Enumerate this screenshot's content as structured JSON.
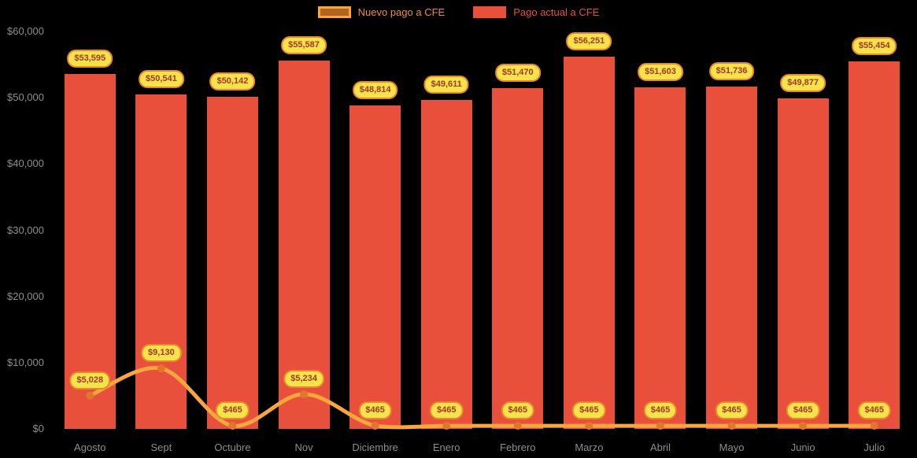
{
  "colors": {
    "background": "#000000",
    "axis_text": "#8e8e8e",
    "pill_bg": "#f7e24b",
    "pill_border": "#e8872c",
    "pill_text": "#9e3a1e",
    "legend_line_fill": "#b3641c",
    "legend_line_border": "#f9a63c",
    "legend_line_text": "#ee8f2f",
    "legend_bar_text": "#e8503b"
  },
  "chart_data": {
    "type": "bar",
    "categories": [
      "Agosto",
      "Sept",
      "Octubre",
      "Nov",
      "Diciembre",
      "Enero",
      "Febrero",
      "Marzo",
      "Abril",
      "Mayo",
      "Junio",
      "Julio"
    ],
    "series": [
      {
        "name": "Nuevo pago a CFE",
        "type": "line",
        "color": "#f9a63c",
        "point_color": "#e2762e",
        "values": [
          5028,
          9130,
          465,
          5234,
          465,
          465,
          465,
          465,
          465,
          465,
          465,
          465
        ],
        "labels": [
          "$5,028",
          "$9,130",
          "$465",
          "$5,234",
          "$465",
          "$465",
          "$465",
          "$465",
          "$465",
          "$465",
          "$465",
          "$465"
        ]
      },
      {
        "name": "Pago actual a CFE",
        "type": "bar",
        "color": "#e8503b",
        "values": [
          53595,
          50541,
          50142,
          55587,
          48814,
          49611,
          51470,
          56251,
          51603,
          51736,
          49877,
          55454
        ],
        "labels": [
          "$53,595",
          "$50,541",
          "$50,142",
          "$55,587",
          "$48,814",
          "$49,611",
          "$51,470",
          "$56,251",
          "$51,603",
          "$51,736",
          "$49,877",
          "$55,454"
        ]
      }
    ],
    "y_axis": {
      "min": 0,
      "max": 60000,
      "ticks": [
        "$0",
        "$10,000",
        "$20,000",
        "$30,000",
        "$40,000",
        "$50,000",
        "$60,000"
      ]
    },
    "grid": false,
    "legend_position": "top"
  }
}
